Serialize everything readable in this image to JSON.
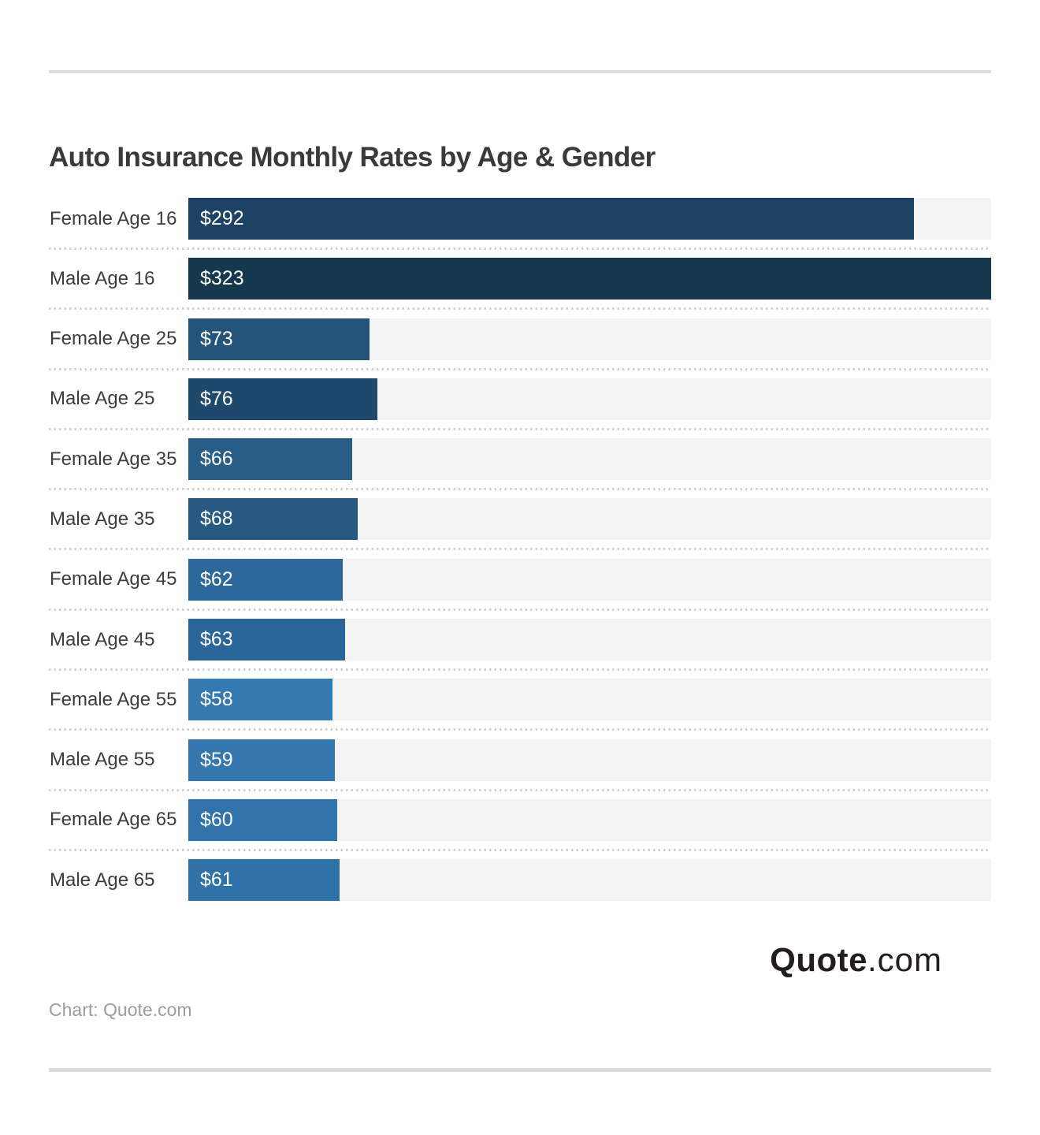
{
  "title": "Auto Insurance Monthly Rates by Age & Gender",
  "source_note": "Chart: Quote.com",
  "logo": {
    "bold": "Quote",
    "light": ".com"
  },
  "colors": {
    "background": "#ffffff",
    "divider": "#dcdcdc",
    "dotted_separator": "#d2d2d2",
    "title_text": "#3a3a3a",
    "category_text": "#3d3d3d",
    "value_text": "#ffffff",
    "source_text": "#9c9c9c",
    "logo_text": "#221e1f"
  },
  "chart_data": {
    "type": "bar",
    "orientation": "horizontal",
    "title": "Auto Insurance Monthly Rates by Age & Gender",
    "xlabel": "",
    "ylabel": "",
    "xlim": [
      0,
      323
    ],
    "grid": false,
    "legend": false,
    "track_color": "#f4f4f4",
    "categories": [
      "Female Age 16",
      "Male Age 16",
      "Female Age 25",
      "Male Age 25",
      "Female Age 35",
      "Male Age 35",
      "Female Age 45",
      "Male Age 45",
      "Female Age 55",
      "Male Age 55",
      "Female Age 65",
      "Male Age 65"
    ],
    "values": [
      292,
      323,
      73,
      76,
      66,
      68,
      62,
      63,
      58,
      59,
      60,
      61
    ],
    "value_labels": [
      "$292",
      "$323",
      "$73",
      "$76",
      "$66",
      "$68",
      "$62",
      "$63",
      "$58",
      "$59",
      "$60",
      "$61"
    ],
    "bar_colors": [
      "#1d4263",
      "#16384f",
      "#24547a",
      "#1f496c",
      "#275d87",
      "#265a83",
      "#2c689c",
      "#2b669a",
      "#3579b1",
      "#3377ae",
      "#3174ab",
      "#2f72a8"
    ]
  }
}
